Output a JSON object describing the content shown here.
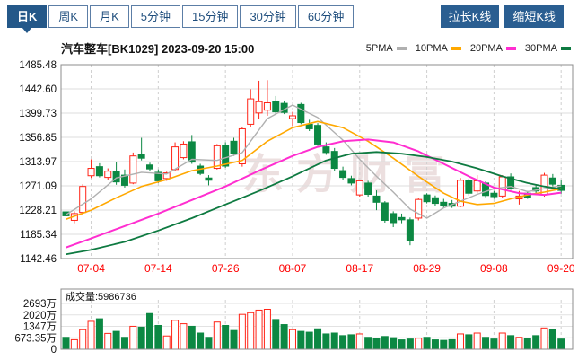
{
  "toolbar": {
    "tabs": [
      {
        "key": "daily",
        "label": "日K",
        "active": true
      },
      {
        "key": "weekly",
        "label": "周K",
        "active": false
      },
      {
        "key": "monthly",
        "label": "月K",
        "active": false
      },
      {
        "key": "5min",
        "label": "5分钟",
        "active": false
      },
      {
        "key": "15min",
        "label": "15分钟",
        "active": false
      },
      {
        "key": "30min",
        "label": "30分钟",
        "active": false
      },
      {
        "key": "60min",
        "label": "60分钟",
        "active": false
      }
    ],
    "stretch_button": "拉长K线",
    "shrink_button": "缩短K线"
  },
  "header": {
    "title": "汽车整车[BK1029] 2023-09-20 15:00",
    "legend": [
      {
        "key": "5pma",
        "label": "5PMA",
        "color": "#b0b0b0"
      },
      {
        "key": "10pma",
        "label": "10PMA",
        "color": "#ffa800"
      },
      {
        "key": "20pma",
        "label": "20PMA",
        "color": "#ff2ed0"
      },
      {
        "key": "30pma",
        "label": "30PMA",
        "color": "#0e7a41"
      }
    ]
  },
  "watermark": "东方财富",
  "volume_panel": {
    "label": "成交量:5986736",
    "latest_volume": 5986736
  },
  "chart_data": {
    "type": "candlestick+volume",
    "title": "汽车整车[BK1029]",
    "datetime": "2023-09-20 15:00",
    "up_color": "#ff2417",
    "down_color": "#0c8843",
    "up_style": "hollow",
    "axis_label_color_x": "#fe0000",
    "y_ticks": [
      1485.48,
      1442.6,
      1399.73,
      1356.85,
      1313.97,
      1271.09,
      1228.21,
      1185.34,
      1142.46
    ],
    "price_range": [
      1142.46,
      1485.48
    ],
    "x_ticks": [
      {
        "index": 3,
        "label": "07-04"
      },
      {
        "index": 11,
        "label": "07-14"
      },
      {
        "index": 19,
        "label": "07-26"
      },
      {
        "index": 27,
        "label": "08-07"
      },
      {
        "index": 35,
        "label": "08-17"
      },
      {
        "index": 43,
        "label": "08-29"
      },
      {
        "index": 51,
        "label": "09-08"
      },
      {
        "index": 59,
        "label": "09-20"
      }
    ],
    "volume_ticks": [
      {
        "value": 2693.4,
        "label": "2693万"
      },
      {
        "value": 2020.05,
        "label": "2020万"
      },
      {
        "value": 1346.7,
        "label": "1347万"
      },
      {
        "value": 673.35,
        "label": "673.35万"
      },
      {
        "value": 0,
        "label": "0"
      }
    ],
    "dates": [
      "06-29",
      "06-30",
      "07-03",
      "07-04",
      "07-05",
      "07-06",
      "07-07",
      "07-10",
      "07-11",
      "07-12",
      "07-13",
      "07-14",
      "07-17",
      "07-18",
      "07-19",
      "07-20",
      "07-21",
      "07-24",
      "07-25",
      "07-26",
      "07-27",
      "07-28",
      "07-31",
      "08-01",
      "08-02",
      "08-03",
      "08-04",
      "08-07",
      "08-08",
      "08-09",
      "08-10",
      "08-11",
      "08-14",
      "08-15",
      "08-16",
      "08-17",
      "08-18",
      "08-21",
      "08-22",
      "08-23",
      "08-24",
      "08-25",
      "08-28",
      "08-29",
      "08-30",
      "08-31",
      "09-01",
      "09-04",
      "09-05",
      "09-06",
      "09-07",
      "09-08",
      "09-11",
      "09-12",
      "09-13",
      "09-14",
      "09-15",
      "09-18",
      "09-19",
      "09-20"
    ],
    "ohlc": [
      [
        1225,
        1230,
        1212,
        1218
      ],
      [
        1210,
        1226,
        1205,
        1222
      ],
      [
        1224,
        1274,
        1220,
        1270
      ],
      [
        1289,
        1318,
        1285,
        1302
      ],
      [
        1305,
        1311,
        1286,
        1289
      ],
      [
        1286,
        1302,
        1282,
        1297
      ],
      [
        1297,
        1313,
        1273,
        1278
      ],
      [
        1290,
        1300,
        1268,
        1272
      ],
      [
        1276,
        1330,
        1274,
        1324
      ],
      [
        1326,
        1356,
        1316,
        1320
      ],
      [
        1308,
        1312,
        1298,
        1301
      ],
      [
        1295,
        1300,
        1276,
        1280
      ],
      [
        1284,
        1296,
        1280,
        1294
      ],
      [
        1300,
        1348,
        1297,
        1340
      ],
      [
        1321,
        1350,
        1318,
        1345
      ],
      [
        1349,
        1361,
        1310,
        1313
      ],
      [
        1306,
        1310,
        1290,
        1293
      ],
      [
        1285,
        1290,
        1272,
        1281
      ],
      [
        1302,
        1345,
        1300,
        1342
      ],
      [
        1342,
        1348,
        1303,
        1306
      ],
      [
        1350,
        1356,
        1324,
        1329
      ],
      [
        1310,
        1375,
        1305,
        1372
      ],
      [
        1380,
        1442,
        1375,
        1425
      ],
      [
        1400,
        1457,
        1390,
        1420
      ],
      [
        1405,
        1458,
        1395,
        1418
      ],
      [
        1420,
        1430,
        1398,
        1402
      ],
      [
        1417,
        1422,
        1398,
        1401
      ],
      [
        1390,
        1402,
        1377,
        1395
      ],
      [
        1415,
        1418,
        1380,
        1383
      ],
      [
        1380,
        1388,
        1368,
        1372
      ],
      [
        1378,
        1382,
        1342,
        1345
      ],
      [
        1340,
        1348,
        1326,
        1330
      ],
      [
        1332,
        1338,
        1298,
        1302
      ],
      [
        1298,
        1305,
        1282,
        1286
      ],
      [
        1284,
        1289,
        1272,
        1276
      ],
      [
        1255,
        1281,
        1252,
        1280
      ],
      [
        1276,
        1280,
        1252,
        1256
      ],
      [
        1253,
        1263,
        1228,
        1242
      ],
      [
        1241,
        1244,
        1206,
        1210
      ],
      [
        1222,
        1226,
        1198,
        1206
      ],
      [
        1215,
        1222,
        1205,
        1211
      ],
      [
        1211,
        1215,
        1166,
        1174
      ],
      [
        1214,
        1250,
        1210,
        1247
      ],
      [
        1255,
        1258,
        1240,
        1243
      ],
      [
        1250,
        1254,
        1236,
        1240
      ],
      [
        1242,
        1248,
        1232,
        1236
      ],
      [
        1240,
        1246,
        1232,
        1235
      ],
      [
        1235,
        1285,
        1233,
        1281
      ],
      [
        1281,
        1284,
        1254,
        1258
      ],
      [
        1262,
        1290,
        1258,
        1280
      ],
      [
        1276,
        1279,
        1251,
        1254
      ],
      [
        1258,
        1262,
        1248,
        1252
      ],
      [
        1253,
        1290,
        1250,
        1287
      ],
      [
        1287,
        1293,
        1264,
        1267
      ],
      [
        1248,
        1262,
        1238,
        1253
      ],
      [
        1258,
        1262,
        1248,
        1251
      ],
      [
        1268,
        1272,
        1258,
        1262
      ],
      [
        1255,
        1294,
        1252,
        1290
      ],
      [
        1285,
        1292,
        1270,
        1274
      ],
      [
        1272,
        1281,
        1257,
        1263
      ]
    ],
    "volumes_wan": [
      700,
      560,
      1150,
      1640,
      1790,
      930,
      1050,
      700,
      1350,
      1300,
      2100,
      1400,
      780,
      1700,
      1500,
      1350,
      950,
      700,
      1600,
      1400,
      1100,
      2050,
      2150,
      2300,
      2350,
      1750,
      1450,
      1150,
      1050,
      1000,
      1200,
      900,
      950,
      800,
      850,
      900,
      700,
      650,
      750,
      680,
      550,
      600,
      650,
      700,
      550,
      520,
      560,
      900,
      850,
      950,
      700,
      600,
      950,
      800,
      700,
      650,
      800,
      1250,
      1150,
      599
    ],
    "ma_lines": [
      {
        "name": "5PMA",
        "color": "#b0b0b0",
        "width": 1.4,
        "points": [
          [
            1,
            1220
          ],
          [
            4,
            1248
          ],
          [
            7,
            1285
          ],
          [
            10,
            1295
          ],
          [
            13,
            1292
          ],
          [
            16,
            1318
          ],
          [
            19,
            1316
          ],
          [
            22,
            1330
          ],
          [
            25,
            1390
          ],
          [
            28,
            1414
          ],
          [
            31,
            1392
          ],
          [
            34,
            1352
          ],
          [
            36,
            1318
          ],
          [
            38,
            1288
          ],
          [
            40,
            1260
          ],
          [
            42,
            1230
          ],
          [
            44,
            1214
          ],
          [
            46,
            1232
          ],
          [
            48,
            1244
          ],
          [
            50,
            1256
          ],
          [
            52,
            1266
          ],
          [
            54,
            1270
          ],
          [
            56,
            1261
          ],
          [
            58,
            1266
          ],
          [
            60,
            1271
          ]
        ]
      },
      {
        "name": "10PMA",
        "color": "#ffa800",
        "width": 1.6,
        "points": [
          [
            1,
            1212
          ],
          [
            4,
            1228
          ],
          [
            7,
            1250
          ],
          [
            10,
            1270
          ],
          [
            13,
            1282
          ],
          [
            16,
            1298
          ],
          [
            19,
            1306
          ],
          [
            22,
            1316
          ],
          [
            25,
            1350
          ],
          [
            28,
            1374
          ],
          [
            31,
            1385
          ],
          [
            34,
            1374
          ],
          [
            37,
            1350
          ],
          [
            40,
            1320
          ],
          [
            43,
            1288
          ],
          [
            46,
            1258
          ],
          [
            48,
            1244
          ],
          [
            50,
            1238
          ],
          [
            52,
            1240
          ],
          [
            54,
            1248
          ],
          [
            56,
            1255
          ],
          [
            58,
            1260
          ],
          [
            60,
            1266
          ]
        ]
      },
      {
        "name": "20PMA",
        "color": "#ff2ed0",
        "width": 2,
        "points": [
          [
            1,
            1162
          ],
          [
            4,
            1178
          ],
          [
            8,
            1200
          ],
          [
            12,
            1222
          ],
          [
            16,
            1246
          ],
          [
            20,
            1270
          ],
          [
            24,
            1298
          ],
          [
            28,
            1324
          ],
          [
            31,
            1340
          ],
          [
            34,
            1350
          ],
          [
            37,
            1353
          ],
          [
            40,
            1348
          ],
          [
            43,
            1332
          ],
          [
            46,
            1310
          ],
          [
            49,
            1288
          ],
          [
            52,
            1268
          ],
          [
            55,
            1258
          ],
          [
            58,
            1255
          ],
          [
            60,
            1259
          ]
        ]
      },
      {
        "name": "30PMA",
        "color": "#0e7a41",
        "width": 1.8,
        "points": [
          [
            1,
            1150
          ],
          [
            4,
            1158
          ],
          [
            8,
            1172
          ],
          [
            12,
            1192
          ],
          [
            16,
            1214
          ],
          [
            20,
            1238
          ],
          [
            24,
            1262
          ],
          [
            28,
            1288
          ],
          [
            32,
            1316
          ],
          [
            35,
            1328
          ],
          [
            38,
            1331
          ],
          [
            41,
            1328
          ],
          [
            44,
            1322
          ],
          [
            47,
            1314
          ],
          [
            50,
            1302
          ],
          [
            53,
            1288
          ],
          [
            56,
            1276
          ],
          [
            58,
            1270
          ],
          [
            60,
            1265
          ]
        ]
      }
    ]
  }
}
